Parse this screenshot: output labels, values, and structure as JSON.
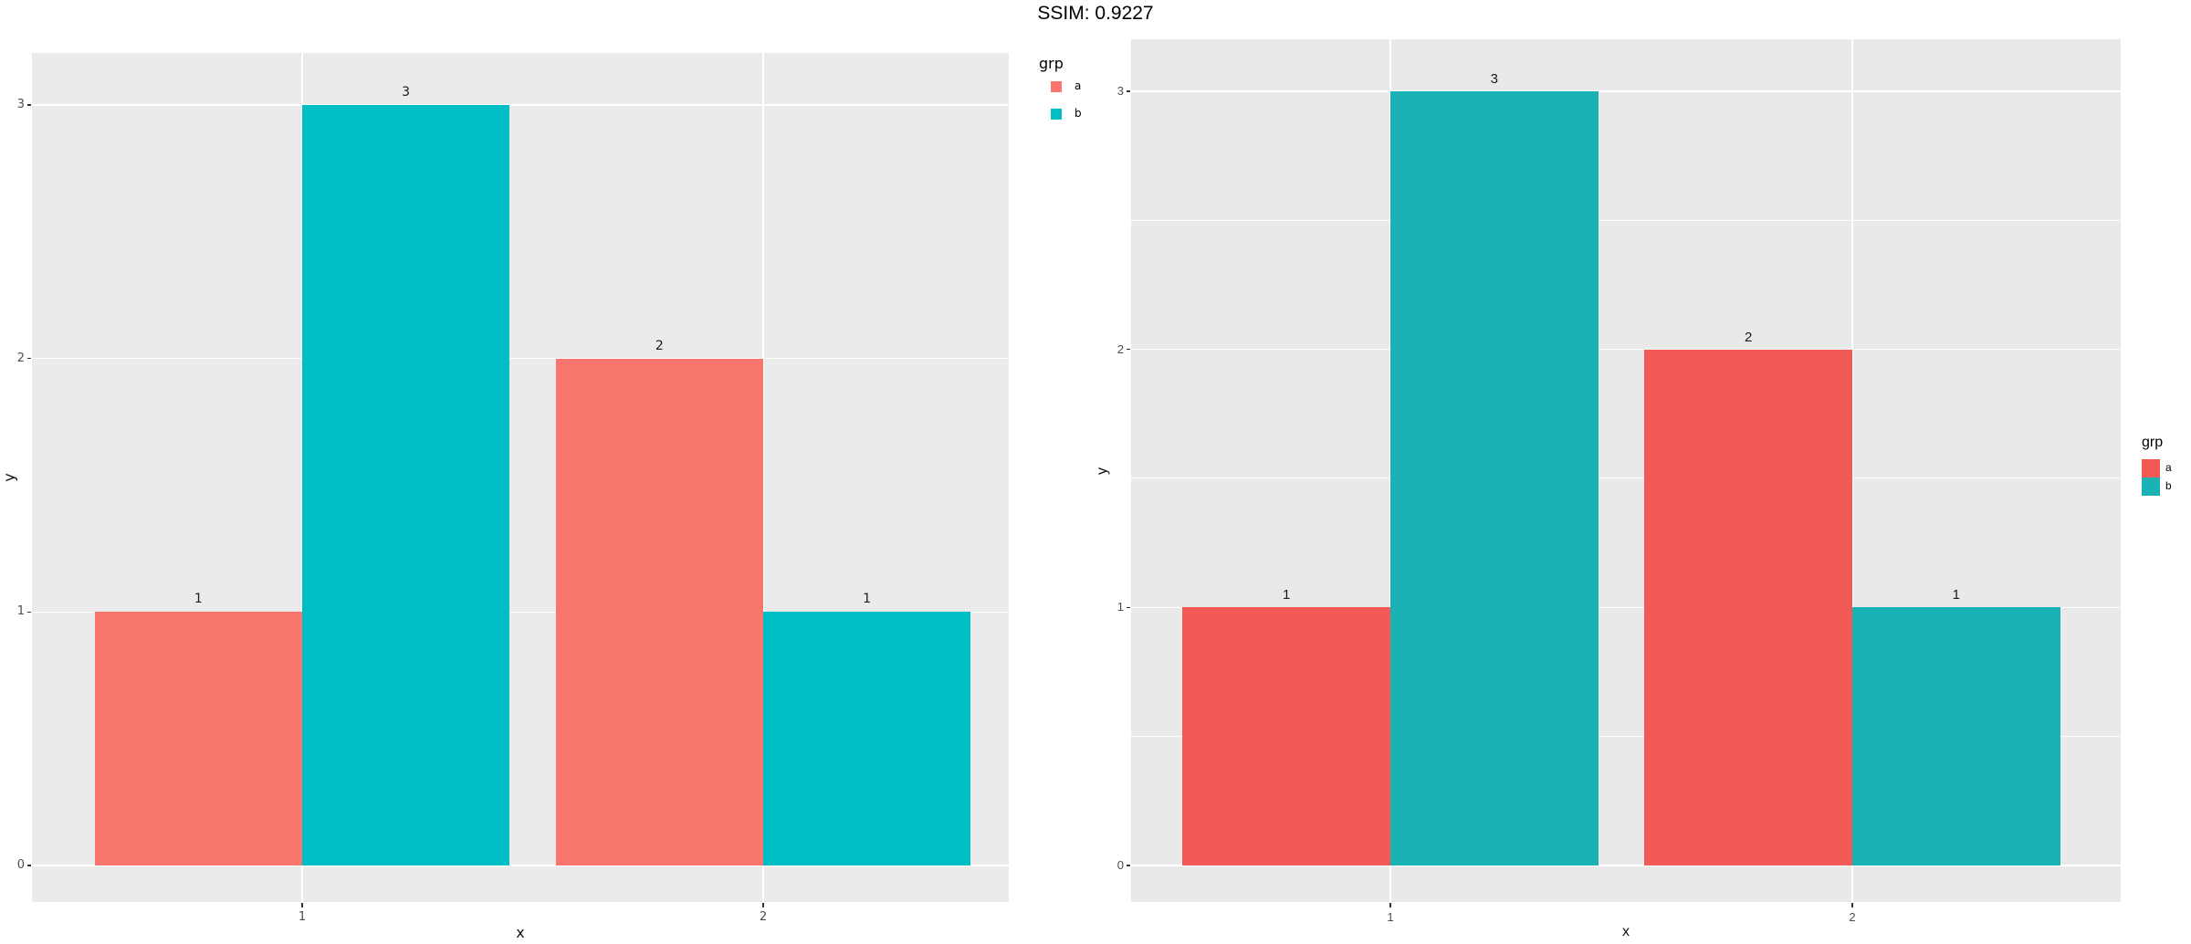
{
  "title": "SSIM: 0.9227",
  "chart_data": [
    {
      "id": "left-chart",
      "type": "bar",
      "title": "",
      "xlabel": "x",
      "ylabel": "y",
      "legend_title": "grp",
      "legend_position": "right-top",
      "legend_entries": [
        "a",
        "b"
      ],
      "categories": [
        1,
        2
      ],
      "series": [
        {
          "name": "a",
          "color": "#F8766D",
          "values": [
            1,
            2
          ]
        },
        {
          "name": "b",
          "color": "#00BFC4",
          "values": [
            3,
            1
          ]
        }
      ],
      "x_tick_labels": [
        "1",
        "2"
      ],
      "y_tick_labels": [
        "0",
        "1",
        "2",
        "3"
      ],
      "ylim": [
        -0.15,
        3.2
      ],
      "grid": "major-only",
      "gridline_color": "#FFFFFF",
      "panel_bg": "#EBEBEB",
      "bar_value_labels": true
    },
    {
      "id": "right-chart",
      "type": "bar",
      "title": "",
      "xlabel": "x",
      "ylabel": "y",
      "legend_title": "grp",
      "legend_position": "right-center",
      "legend_entries": [
        "a",
        "b"
      ],
      "categories": [
        1,
        2
      ],
      "series": [
        {
          "name": "a",
          "color": "#F25A56",
          "values": [
            1,
            2
          ]
        },
        {
          "name": "b",
          "color": "#1AB2B5",
          "values": [
            3,
            1
          ]
        }
      ],
      "x_tick_labels": [
        "1",
        "2"
      ],
      "y_tick_labels": [
        "0",
        "1",
        "2",
        "3"
      ],
      "ylim": [
        -0.15,
        3.2
      ],
      "grid": "major-plus-minor-y",
      "gridline_color": "#FFFFFF",
      "panel_bg": "#E9E9E9",
      "bar_value_labels": true
    }
  ]
}
